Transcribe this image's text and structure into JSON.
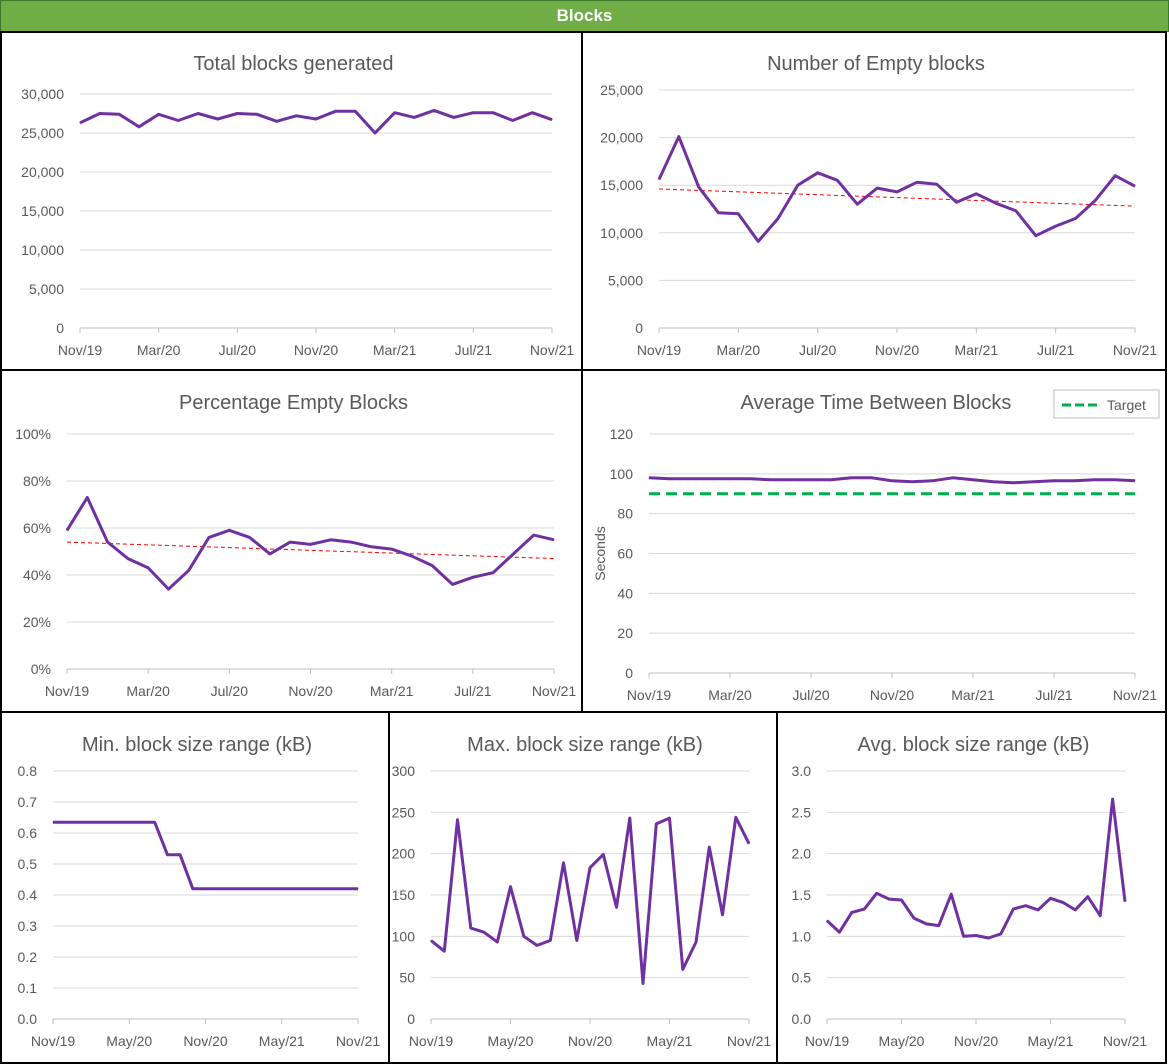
{
  "header": {
    "title": "Blocks"
  },
  "colors": {
    "series": "#7030a0",
    "trend": "#ff0000",
    "target": "#00b050",
    "grid": "#d9d9d9",
    "header_bg": "#70ad47"
  },
  "chart_data": [
    {
      "id": "total",
      "type": "line",
      "title": "Total blocks generated",
      "ylim": [
        0,
        30000
      ],
      "ystep": 5000,
      "ytick_labels": [
        "0",
        "5,000",
        "10,000",
        "15,000",
        "20,000",
        "25,000",
        "30,000"
      ],
      "xtick_labels": [
        "Nov/19",
        "Mar/20",
        "Jul/20",
        "Nov/20",
        "Mar/21",
        "Jul/21",
        "Nov/21"
      ],
      "series": [
        {
          "values": [
            26300,
            27500,
            27400,
            25800,
            27400,
            26600,
            27500,
            26800,
            27500,
            27400,
            26500,
            27200,
            26800,
            27800,
            27800,
            25000,
            27600,
            27000,
            27900,
            27000,
            27600,
            27600,
            26600,
            27600,
            26700
          ]
        }
      ]
    },
    {
      "id": "empty",
      "type": "line",
      "title": "Number of Empty blocks",
      "ylim": [
        0,
        25000
      ],
      "ystep": 5000,
      "ytick_labels": [
        "0",
        "5,000",
        "10,000",
        "15,000",
        "20,000",
        "25,000"
      ],
      "xtick_labels": [
        "Nov/19",
        "Mar/20",
        "Jul/20",
        "Nov/20",
        "Mar/21",
        "Jul/21",
        "Nov/21"
      ],
      "series": [
        {
          "values": [
            15600,
            20100,
            14800,
            12100,
            12000,
            9100,
            11500,
            15000,
            16300,
            15500,
            13000,
            14700,
            14300,
            15300,
            15100,
            13200,
            14100,
            13100,
            12300,
            9700,
            10700,
            11500,
            13400,
            16000,
            14900
          ]
        }
      ],
      "trend": [
        14600,
        12800
      ]
    },
    {
      "id": "pct",
      "type": "line",
      "title": "Percentage Empty Blocks",
      "ylim": [
        0,
        100
      ],
      "ystep": 20,
      "ytick_labels": [
        "0%",
        "20%",
        "40%",
        "60%",
        "80%",
        "100%"
      ],
      "xtick_labels": [
        "Nov/19",
        "Mar/20",
        "Jul/20",
        "Nov/20",
        "Mar/21",
        "Jul/21",
        "Nov/21"
      ],
      "series": [
        {
          "values": [
            59,
            73,
            54,
            47,
            43,
            34,
            42,
            56,
            59,
            56,
            49,
            54,
            53,
            55,
            54,
            52,
            51,
            48,
            44,
            36,
            39,
            41,
            49,
            57,
            55
          ]
        }
      ],
      "trend": [
        54,
        47
      ]
    },
    {
      "id": "avgtime",
      "type": "line",
      "title": "Average Time Between Blocks",
      "ylabel": "Seconds",
      "ylim": [
        0,
        120
      ],
      "ystep": 20,
      "ytick_labels": [
        "0",
        "20",
        "40",
        "60",
        "80",
        "100",
        "120"
      ],
      "xtick_labels": [
        "Nov/19",
        "Mar/20",
        "Jul/20",
        "Nov/20",
        "Mar/21",
        "Jul/21",
        "Nov/21"
      ],
      "series": [
        {
          "values": [
            98,
            97.5,
            97.5,
            97.5,
            97.5,
            97.5,
            97,
            97,
            97,
            97,
            98,
            98,
            96.5,
            96,
            96.5,
            98,
            97,
            96,
            95.5,
            96,
            96.5,
            96.5,
            97,
            97,
            96.5
          ]
        }
      ],
      "target": 90,
      "legend": {
        "label": "Target"
      }
    },
    {
      "id": "minsize",
      "type": "line",
      "title": "Min. block size range (kB)",
      "ylim": [
        0,
        0.8
      ],
      "ystep": 0.1,
      "ytick_labels": [
        "0.0",
        "0.1",
        "0.2",
        "0.3",
        "0.4",
        "0.5",
        "0.6",
        "0.7",
        "0.8"
      ],
      "xtick_labels": [
        "Nov/19",
        "May/20",
        "Nov/20",
        "May/21",
        "Nov/21"
      ],
      "series": [
        {
          "values": [
            0.635,
            0.635,
            0.635,
            0.635,
            0.635,
            0.635,
            0.635,
            0.635,
            0.635,
            0.53,
            0.53,
            0.42,
            0.42,
            0.42,
            0.42,
            0.42,
            0.42,
            0.42,
            0.42,
            0.42,
            0.42,
            0.42,
            0.42,
            0.42,
            0.42
          ]
        }
      ]
    },
    {
      "id": "maxsize",
      "type": "line",
      "title": "Max. block size range (kB)",
      "ylim": [
        0,
        300
      ],
      "ystep": 50,
      "ytick_labels": [
        "0",
        "50",
        "100",
        "150",
        "200",
        "250",
        "300"
      ],
      "xtick_labels": [
        "Nov/19",
        "May/20",
        "Nov/20",
        "May/21",
        "Nov/21"
      ],
      "series": [
        {
          "values": [
            95,
            82,
            241,
            110,
            105,
            93,
            160,
            100,
            89,
            95,
            189,
            95,
            183,
            199,
            135,
            243,
            43,
            236,
            243,
            60,
            93,
            208,
            126,
            244,
            212
          ]
        }
      ]
    },
    {
      "id": "avgsize",
      "type": "line",
      "title": "Avg. block size range (kB)",
      "ylim": [
        0,
        3.0
      ],
      "ystep": 0.5,
      "ytick_labels": [
        "0.0",
        "0.5",
        "1.0",
        "1.5",
        "2.0",
        "2.5",
        "3.0"
      ],
      "xtick_labels": [
        "Nov/19",
        "May/20",
        "Nov/20",
        "May/21",
        "Nov/21"
      ],
      "series": [
        {
          "values": [
            1.19,
            1.05,
            1.29,
            1.33,
            1.52,
            1.45,
            1.44,
            1.22,
            1.15,
            1.13,
            1.51,
            1.0,
            1.01,
            0.98,
            1.03,
            1.33,
            1.37,
            1.32,
            1.46,
            1.41,
            1.32,
            1.48,
            1.25,
            2.66,
            1.42
          ]
        }
      ]
    }
  ]
}
